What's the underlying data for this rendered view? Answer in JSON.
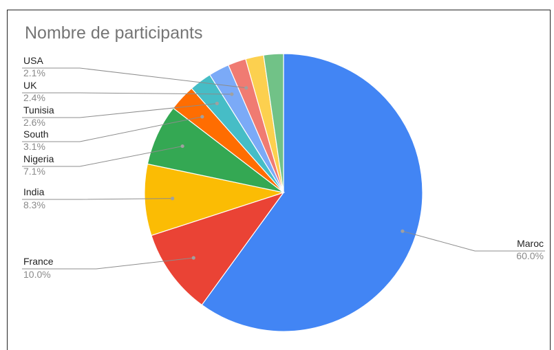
{
  "chart_data": {
    "type": "pie",
    "title": "Nombre de participants",
    "slices": [
      {
        "label": "Maroc",
        "value": 60.0,
        "percent_label": "60.0%",
        "color": "#4285F4"
      },
      {
        "label": "France",
        "value": 10.0,
        "percent_label": "10.0%",
        "color": "#EA4335"
      },
      {
        "label": "India",
        "value": 8.3,
        "percent_label": "8.3%",
        "color": "#FBBC04"
      },
      {
        "label": "Nigeria",
        "value": 7.1,
        "percent_label": "7.1%",
        "color": "#34A853"
      },
      {
        "label": "South",
        "value": 3.1,
        "percent_label": "3.1%",
        "color": "#FF6D01"
      },
      {
        "label": "Tunisia",
        "value": 2.6,
        "percent_label": "2.6%",
        "color": "#46BDC6"
      },
      {
        "label": "UK",
        "value": 2.4,
        "percent_label": "2.4%",
        "color": "#7BAAF7"
      },
      {
        "label": "USA",
        "value": 2.1,
        "percent_label": "2.1%",
        "color": "#F07B72"
      },
      {
        "label": "",
        "value": 2.1,
        "percent_label": "",
        "color": "#FCD04F"
      },
      {
        "label": "",
        "value": 2.3,
        "percent_label": "",
        "color": "#71C287"
      }
    ],
    "start_direction": "top",
    "direction": "clockwise"
  }
}
